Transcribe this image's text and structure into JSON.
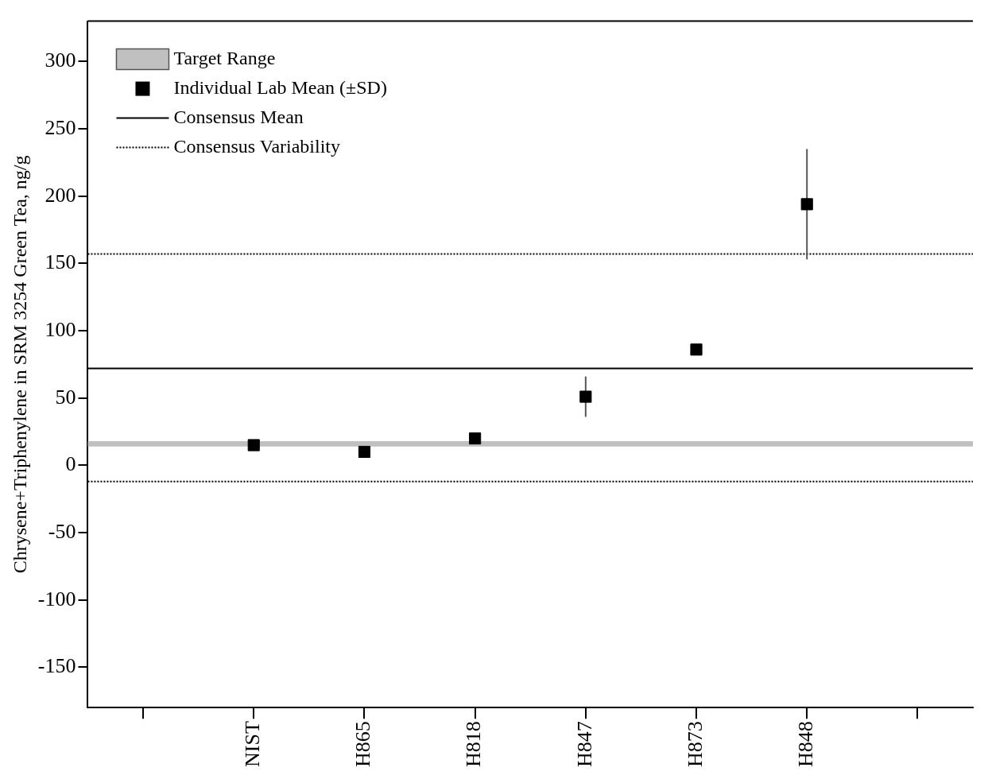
{
  "chart_data": {
    "type": "scatter",
    "ylabel": "Chrysene+Triphenylene in SRM 3254 Green Tea, ng/g",
    "categories": [
      null,
      "NIST",
      "H865",
      "H818",
      "H847",
      "H873",
      "H848",
      null
    ],
    "series": [
      {
        "name": "Individual Lab Mean (±SD)",
        "color": "#000000",
        "values": [
          null,
          15,
          10,
          20,
          51,
          86,
          194,
          null
        ],
        "errors": [
          null,
          null,
          null,
          null,
          15,
          4,
          41,
          null
        ]
      }
    ],
    "marker": "square",
    "ylim": [
      -180,
      330
    ],
    "yticks": [
      -150,
      -100,
      -50,
      0,
      50,
      100,
      150,
      200,
      250,
      300
    ],
    "bands": [
      {
        "axis": "y",
        "from": 14,
        "to": 18,
        "label": "Target Range",
        "color": "#c0c0c0"
      }
    ],
    "ref_lines": [
      {
        "axis": "y",
        "value": 72,
        "label": "Consensus Mean",
        "color": "#000000",
        "line_style": "solid"
      },
      {
        "axis": "y",
        "value": 157,
        "label": "Consensus Variability",
        "color": "#000000",
        "line_style": "dotted"
      },
      {
        "axis": "y",
        "value": -12,
        "color": "#000000",
        "line_style": "dotted"
      }
    ],
    "grid": false,
    "legend": "top left"
  }
}
